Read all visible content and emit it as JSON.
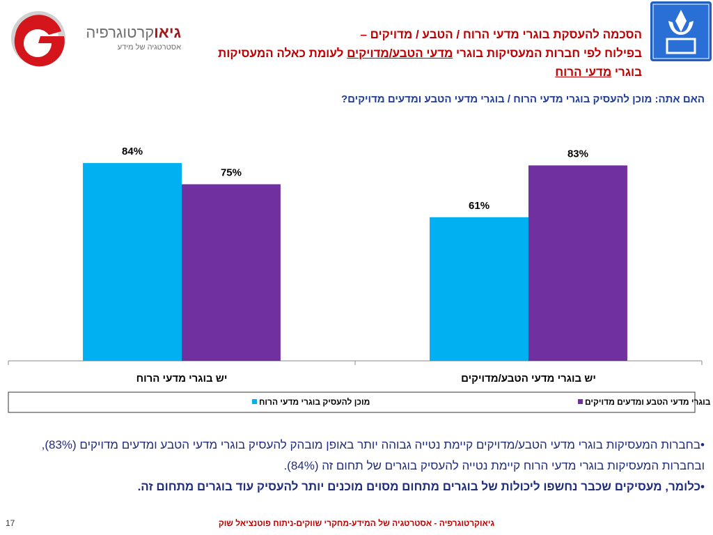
{
  "logo": {
    "name_bold": "גיאו",
    "name_rest": "קרטוגרפיה",
    "tagline": "אסטרטגיה של מידע"
  },
  "header": {
    "line1": "הסכמה להעסקת בוגרי מדעי הרוח / הטבע / מדויקים –",
    "line2_start": "בפילוח לפי חברות המעסיקות בוגרי",
    "line2_underlined": "מדעי הטבע/מדויקים",
    "line2_end": "לעומת כאלה המעסיקות",
    "line3_start": "בוגרי",
    "line3_underlined": "מדעי הרוח",
    "question": "האם אתה: מוכן להעסיק בוגרי מדעי הרוח / בוגרי מדעי הטבע ומדעים מדויקים?"
  },
  "chart_data": {
    "type": "bar",
    "categories": [
      "יש בוגרי מדעי הרוח",
      "יש בוגרי מדעי הטבע/מדויקים"
    ],
    "series": [
      {
        "name": "מוכן להעסיק בוגרי מדעי הרוח",
        "color": "#00b0f0",
        "values": [
          84,
          61
        ],
        "value_labels": [
          "84%",
          "61%"
        ]
      },
      {
        "name": "מוכן להעסיק בוגרי מדעי הטבע ומדעים מדויקים",
        "color": "#7030a0",
        "values": [
          75,
          83
        ],
        "value_labels": [
          "75%",
          "83%"
        ]
      }
    ],
    "ylim": [
      0,
      100
    ],
    "legend": "bottom"
  },
  "bullets": [
    "בחברות המעסיקות בוגרי מדעי הטבע/מדויקים קיימת נטייה גבוהה יותר באופן מובהק להעסיק בוגרי מדעי הטבע ומדעים מדויקים (83%), ובחברות המעסיקות בוגרי מדעי הרוח קיימת נטייה להעסיק בוגרים של תחום זה (84%).",
    "כלומר, מעסיקים שכבר נחשפו ליכולות של בוגרים מתחום מסוים מוכנים יותר להעסיק עוד בוגרים מתחום זה."
  ],
  "footer": {
    "text": "גיאוקרטוגרפיה - אסטרטגיה של המידע-מחקרי שווקים-ניתוח פוטנציאל שוק",
    "page": "17"
  }
}
